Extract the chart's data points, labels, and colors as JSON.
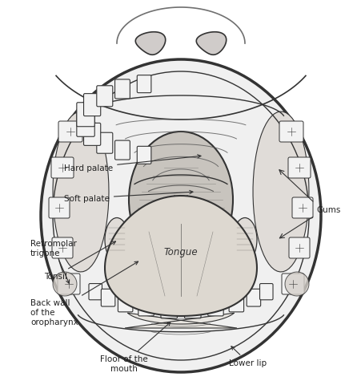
{
  "bg": "#ffffff",
  "lc": "#333333",
  "lc2": "#555555",
  "fill_white": "#ffffff",
  "fill_light": "#f0f0f0",
  "fill_teeth": "#f2f2f2",
  "fill_gum": "#e0dcd8",
  "fill_tongue": "#ddd8d0",
  "fill_throat": "#c8c4be",
  "fill_palate": "#e8e5e0",
  "fill_nostril": "#d0ccca",
  "labels": {
    "hard_palate": "Hard palate",
    "soft_palate": "Soft palate",
    "gums": "Gums",
    "retromolar_trigone": "Retromolar\ntrigone",
    "tonsil": "Tonsil",
    "back_wall": "Back wall\nof the\noropharynx",
    "tongue": "Tongue",
    "floor_mouth": "Floor of the\nmouth",
    "lower_lip": "Lower lip"
  },
  "fontsize": 7.5
}
